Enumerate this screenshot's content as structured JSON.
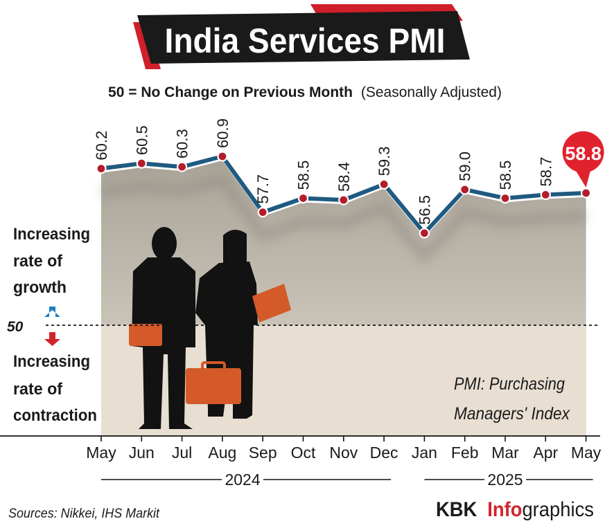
{
  "chart_data": {
    "type": "line",
    "title": "India Services PMI",
    "subtitle_bold": "50 = No Change on Previous Month",
    "subtitle_regular": "(Seasonally Adjusted)",
    "categories": [
      "May",
      "Jun",
      "Jul",
      "Aug",
      "Sep",
      "Oct",
      "Nov",
      "Dec",
      "Jan",
      "Feb",
      "Mar",
      "Apr",
      "May"
    ],
    "series": [
      {
        "name": "India Services PMI",
        "values": [
          60.2,
          60.5,
          60.3,
          60.9,
          57.7,
          58.5,
          58.4,
          59.3,
          56.5,
          59.0,
          58.5,
          58.7,
          58.8
        ],
        "labels": [
          "60.2",
          "60.5",
          "60.3",
          "60.9",
          "57.7",
          "58.5",
          "58.4",
          "59.3",
          "56.5",
          "59.0",
          "58.5",
          "58.7",
          "58.8"
        ]
      }
    ],
    "highlight": "58.8",
    "years": [
      {
        "label": "2024",
        "from": 0,
        "to": 7
      },
      {
        "label": "2025",
        "from": 8,
        "to": 12
      }
    ],
    "baseline_value": 50,
    "baseline_label": "50",
    "growth_lines": [
      "Increasing",
      "rate of",
      "growth"
    ],
    "contraction_lines": [
      "Increasing",
      "rate of",
      "contraction"
    ],
    "note_lines": [
      "PMI: Purchasing",
      "Managers' Index"
    ],
    "source": "Sources: Nikkei, IHS Markit",
    "brand_bold": "KBK",
    "brand_accent": "Info",
    "brand_rest": "graphics",
    "colors": {
      "line": "#1f5a80",
      "marker": "#b51c2a",
      "highlight": "#e0222f",
      "fill_upper": "#b9b4aa",
      "fill_lower": "#e8dfd2",
      "title_bg": "#1a1a1a",
      "title_accent": "#cf1f2a",
      "brand_accent": "#d2232a",
      "arrow_up": "#1b7fc4",
      "arrow_down": "#d2232a",
      "briefcase": "#d45a2a",
      "silhouette": "#121212"
    }
  }
}
